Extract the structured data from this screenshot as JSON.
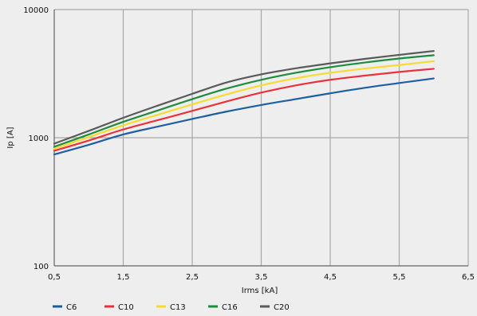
{
  "chart_data": {
    "type": "line",
    "title": "",
    "xlabel": "Irms [kA]",
    "ylabel": "Ip [A]",
    "xscale": "linear",
    "yscale": "log",
    "xlim": [
      0.5,
      6.5
    ],
    "ylim": [
      100,
      10000
    ],
    "x_ticks": [
      0.5,
      1.5,
      2.5,
      3.5,
      4.5,
      5.5,
      6.5
    ],
    "x_tick_labels": [
      "0,5",
      "1,5",
      "2,5",
      "3,5",
      "4,5",
      "5,5",
      "6,5"
    ],
    "y_ticks": [
      100,
      1000,
      10000
    ],
    "y_tick_labels": [
      "100",
      "1000",
      "10000"
    ],
    "grid": true,
    "legend_position": "bottom-left",
    "x": [
      0.5,
      1.0,
      1.5,
      2.0,
      2.5,
      3.0,
      3.5,
      4.0,
      4.5,
      5.0,
      5.5,
      6.0
    ],
    "series": [
      {
        "name": "C6",
        "color": "#1f5fa0",
        "values": [
          740,
          880,
          1060,
          1220,
          1400,
          1600,
          1800,
          2000,
          2220,
          2450,
          2670,
          2900
        ]
      },
      {
        "name": "C10",
        "color": "#e8323c",
        "values": [
          790,
          950,
          1160,
          1370,
          1620,
          1920,
          2250,
          2560,
          2830,
          3050,
          3260,
          3450
        ]
      },
      {
        "name": "C13",
        "color": "#f4dc30",
        "values": [
          820,
          1010,
          1250,
          1510,
          1820,
          2180,
          2560,
          2910,
          3210,
          3460,
          3690,
          3950
        ]
      },
      {
        "name": "C16",
        "color": "#1f8c3c",
        "values": [
          850,
          1060,
          1330,
          1630,
          2000,
          2420,
          2830,
          3210,
          3550,
          3860,
          4150,
          4400
        ]
      },
      {
        "name": "C20",
        "color": "#5a5a5a",
        "values": [
          900,
          1130,
          1430,
          1780,
          2200,
          2700,
          3120,
          3480,
          3800,
          4120,
          4430,
          4750
        ]
      }
    ]
  }
}
